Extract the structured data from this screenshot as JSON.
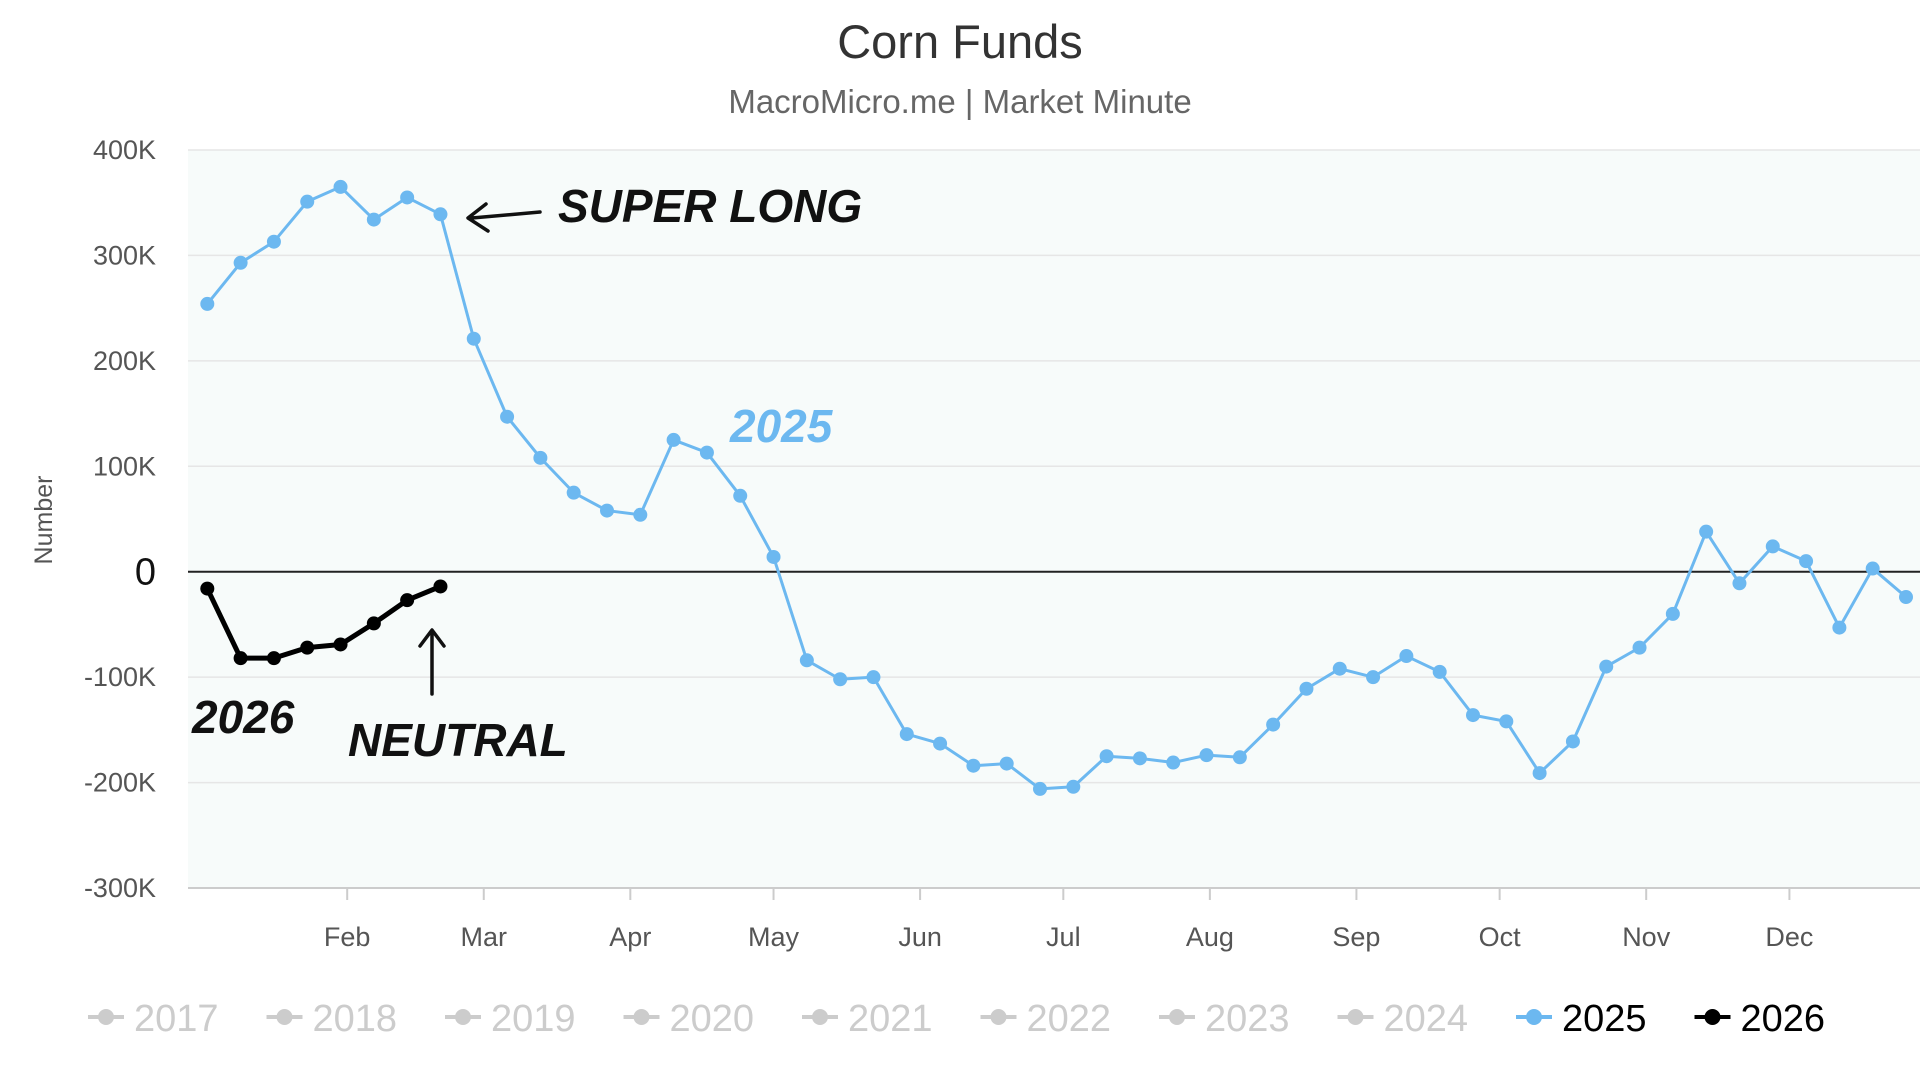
{
  "chart_data": {
    "type": "line",
    "title": "Corn Funds",
    "subtitle": "MacroMicro.me | Market Minute",
    "xlabel": "",
    "ylabel": "Number",
    "ylim": [
      -300000,
      400000
    ],
    "yticks": [
      400000,
      300000,
      200000,
      100000,
      0,
      -100000,
      -200000,
      -300000
    ],
    "ytick_labels": [
      "400K",
      "300K",
      "200K",
      "100K",
      "0",
      "-100K",
      "-200K",
      "-300K"
    ],
    "month_labels": [
      "Feb",
      "Mar",
      "Apr",
      "May",
      "Jun",
      "Jul",
      "Aug",
      "Sep",
      "Oct",
      "Nov",
      "Dec"
    ],
    "week_unit": "week of year",
    "month_start_weeks": [
      5.2,
      9.3,
      13.7,
      18.0,
      22.4,
      26.7,
      31.1,
      35.5,
      39.8,
      44.2,
      48.5
    ],
    "x_range": [
      0,
      52
    ],
    "grid": true,
    "legend_position": "bottom",
    "series": [
      {
        "name": "2017",
        "hidden": true,
        "color": "#cccccc",
        "values": []
      },
      {
        "name": "2018",
        "hidden": true,
        "color": "#cccccc",
        "values": []
      },
      {
        "name": "2019",
        "hidden": true,
        "color": "#cccccc",
        "values": []
      },
      {
        "name": "2020",
        "hidden": true,
        "color": "#cccccc",
        "values": []
      },
      {
        "name": "2021",
        "hidden": true,
        "color": "#cccccc",
        "values": []
      },
      {
        "name": "2022",
        "hidden": true,
        "color": "#cccccc",
        "values": []
      },
      {
        "name": "2023",
        "hidden": true,
        "color": "#cccccc",
        "values": []
      },
      {
        "name": "2024",
        "hidden": true,
        "color": "#cccccc",
        "values": []
      },
      {
        "name": "2025",
        "hidden": false,
        "color": "#6cb8f0",
        "x": [
          1,
          2,
          3,
          4,
          5,
          6,
          7,
          8,
          9,
          10,
          11,
          12,
          13,
          14,
          15,
          16,
          17,
          18,
          19,
          20,
          21,
          22,
          23,
          24,
          25,
          26,
          27,
          28,
          29,
          30,
          31,
          32,
          33,
          34,
          35,
          36,
          37,
          38,
          39,
          40,
          41,
          42,
          43,
          44,
          45,
          46,
          47,
          48,
          49,
          50,
          51,
          52
        ],
        "values": [
          254000,
          293000,
          313000,
          351000,
          365000,
          334000,
          355000,
          339000,
          221000,
          147000,
          108000,
          75000,
          58000,
          54000,
          125000,
          113000,
          72000,
          14000,
          -84000,
          -102000,
          -100000,
          -154000,
          -163000,
          -184000,
          -182000,
          -206000,
          -204000,
          -175000,
          -177000,
          -181000,
          -174000,
          -176000,
          -145000,
          -111000,
          -92000,
          -100000,
          -80000,
          -95000,
          -136000,
          -142000,
          -191000,
          -161000,
          -90000,
          -72000,
          -40000,
          38000,
          -11000,
          24000,
          10000,
          -53000,
          3000,
          -24000
        ]
      },
      {
        "name": "2026",
        "hidden": false,
        "color": "#000000",
        "x": [
          1,
          2,
          3,
          4,
          5,
          6,
          7,
          8
        ],
        "values": [
          -16000,
          -82000,
          -82000,
          -72000,
          -69000,
          -49000,
          -27000,
          -14000
        ]
      }
    ],
    "annotations": [
      {
        "text": "SUPER LONG",
        "color": "#111111"
      },
      {
        "text": "2025",
        "color": "#6cb8f0"
      },
      {
        "text": "2026",
        "color": "#111111"
      },
      {
        "text": "NEUTRAL",
        "color": "#111111"
      }
    ]
  }
}
